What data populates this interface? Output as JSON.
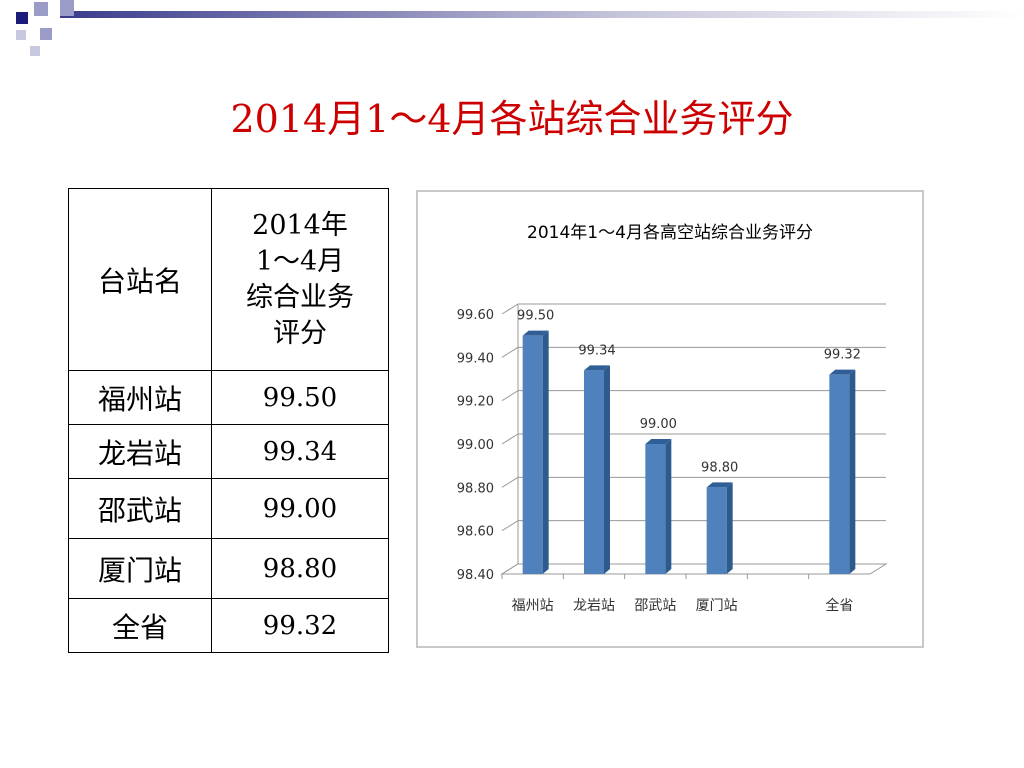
{
  "slide": {
    "title": "2014月1～4月各站综合业务评分"
  },
  "table": {
    "header": {
      "name": "台站名",
      "score_lines": [
        "2014年",
        "1～4月",
        "综合业务",
        "评分"
      ]
    },
    "rows": [
      {
        "name": "福州站",
        "value": "99.50"
      },
      {
        "name": "龙岩站",
        "value": "99.34"
      },
      {
        "name": "邵武站",
        "value": "99.00"
      },
      {
        "name": "厦门站",
        "value": "98.80"
      },
      {
        "name": "全省",
        "value": "99.32"
      }
    ]
  },
  "colors": {
    "title": "#cc0000",
    "bar": "#4f81bd",
    "bar_side": "#2e5b8e",
    "grid": "#999999"
  },
  "chart_data": {
    "type": "bar",
    "title": "2014年1～4月各高空站综合业务评分",
    "categories": [
      "福州站",
      "龙岩站",
      "邵武站",
      "厦门站",
      "",
      "全省"
    ],
    "values": [
      99.5,
      99.34,
      99.0,
      98.8,
      null,
      99.32
    ],
    "data_labels": [
      "99.50",
      "99.34",
      "99.00",
      "98.80",
      "",
      "99.32"
    ],
    "ylim": [
      98.4,
      99.6
    ],
    "yticks": [
      "98.40",
      "98.60",
      "98.80",
      "99.00",
      "99.20",
      "99.40",
      "99.60"
    ],
    "ytick_values": [
      98.4,
      98.6,
      98.8,
      99.0,
      99.2,
      99.4,
      99.6
    ],
    "grid": true,
    "legend": "none"
  }
}
